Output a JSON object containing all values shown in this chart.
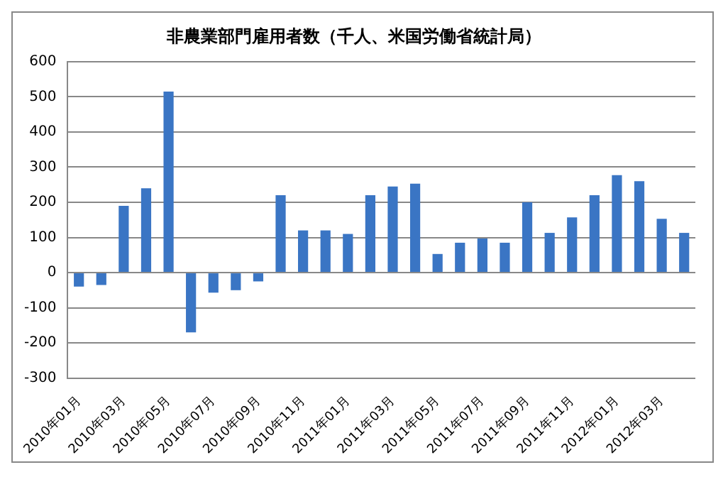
{
  "chart_data": {
    "type": "bar",
    "title": "非農業部門雇用者数（千人、米国労働省統計局）",
    "categories": [
      "2010年01月",
      null,
      "2010年03月",
      null,
      "2010年05月",
      null,
      "2010年07月",
      null,
      "2010年09月",
      null,
      "2010年11月",
      null,
      "2011年01月",
      null,
      "2011年03月",
      null,
      "2011年05月",
      null,
      "2011年07月",
      null,
      "2011年09月",
      null,
      "2011年11月",
      null,
      "2012年01月",
      null,
      "2012年03月",
      null
    ],
    "values": [
      -40,
      -35,
      190,
      240,
      515,
      -170,
      -57,
      -50,
      -25,
      220,
      120,
      120,
      110,
      220,
      245,
      253,
      53,
      85,
      97,
      85,
      200,
      113,
      157,
      220,
      277,
      260,
      153,
      113
    ],
    "color": "#3a75c4",
    "ylim": [
      -300,
      600
    ],
    "yticks": [
      -300,
      -200,
      -100,
      0,
      100,
      200,
      300,
      400,
      500,
      600
    ],
    "grid": "y",
    "legend": false
  }
}
